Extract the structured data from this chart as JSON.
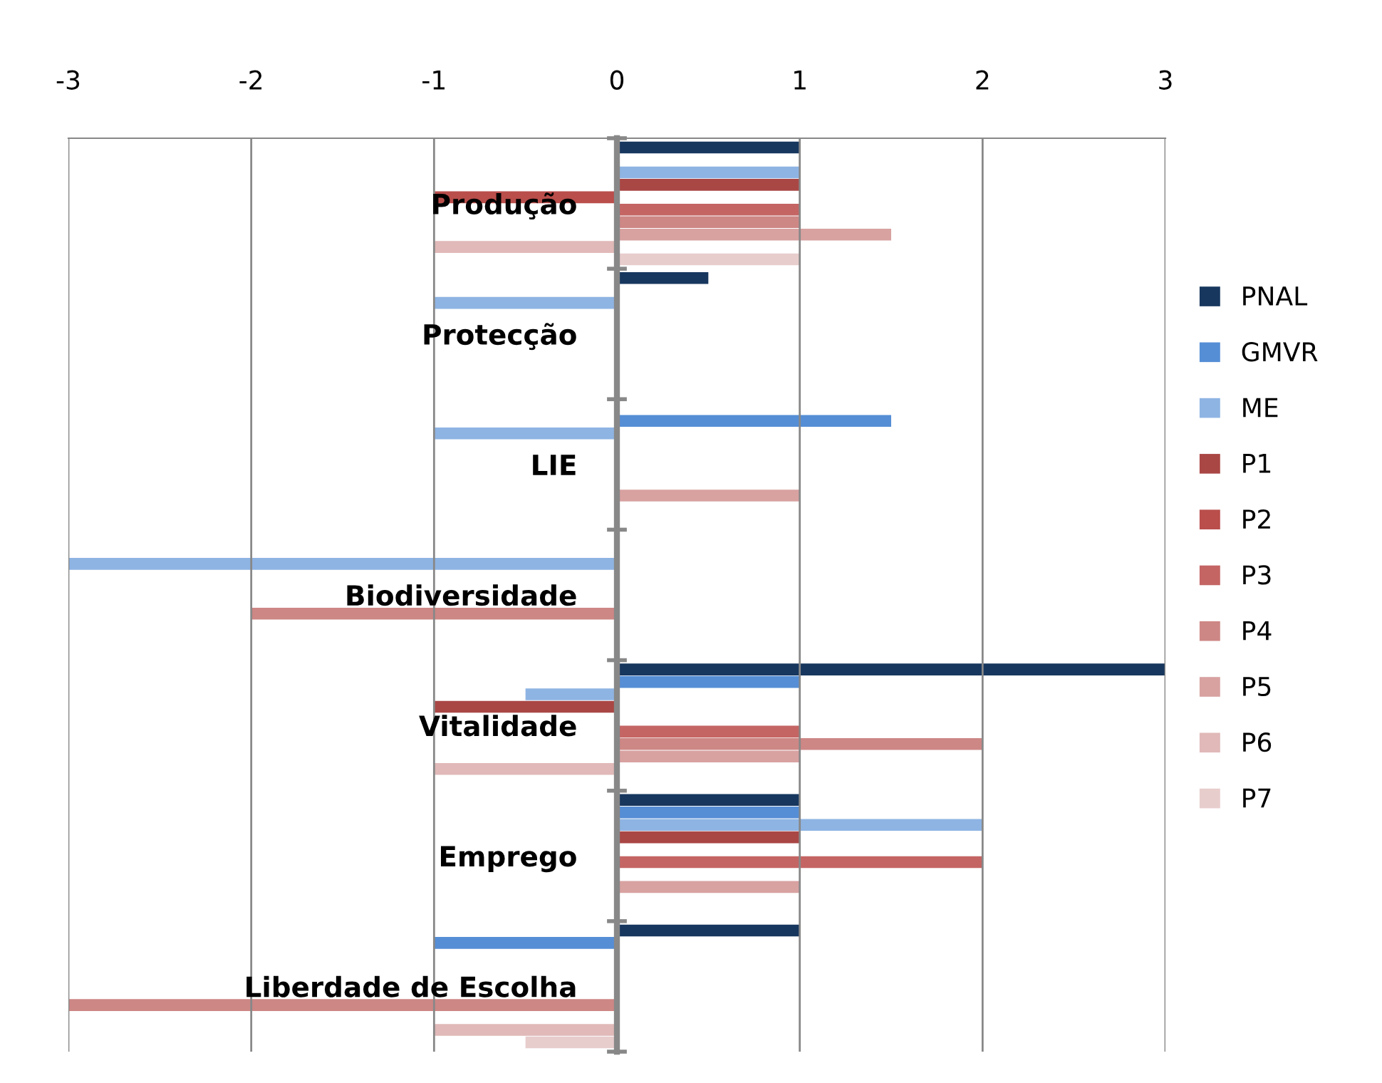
{
  "chart_data": {
    "type": "bar",
    "orientation": "horizontal",
    "categories": [
      "Produção",
      "Protecção",
      "LIE",
      "Biodiversidade",
      "Vitalidade",
      "Emprego",
      "Liberdade de Escolha"
    ],
    "series": [
      {
        "name": "PNAL",
        "color": "#17375e",
        "values": [
          1,
          0.5,
          null,
          null,
          3,
          1,
          1
        ]
      },
      {
        "name": "GMVR",
        "color": "#558ed5",
        "values": [
          null,
          null,
          1.5,
          null,
          1,
          1,
          -1
        ]
      },
      {
        "name": "ME",
        "color": "#8eb4e3",
        "values": [
          1,
          -1,
          -1,
          -3,
          -0.5,
          2,
          null
        ]
      },
      {
        "name": "P1",
        "color": "#a94745",
        "values": [
          1,
          null,
          null,
          null,
          -1,
          1,
          null
        ]
      },
      {
        "name": "P2",
        "color": "#b94e4b",
        "values": [
          -1,
          null,
          null,
          null,
          null,
          null,
          null
        ]
      },
      {
        "name": "P3",
        "color": "#c46564",
        "values": [
          1,
          null,
          null,
          null,
          1,
          2,
          null
        ]
      },
      {
        "name": "P4",
        "color": "#cd8785",
        "values": [
          1,
          null,
          null,
          -2,
          2,
          null,
          -3
        ]
      },
      {
        "name": "P5",
        "color": "#d8a2a1",
        "values": [
          1.5,
          null,
          1,
          null,
          1,
          1,
          null
        ]
      },
      {
        "name": "P6",
        "color": "#e0b9b8",
        "values": [
          -1,
          null,
          null,
          null,
          -1,
          null,
          -1
        ]
      },
      {
        "name": "P7",
        "color": "#e8cdcd",
        "values": [
          1,
          null,
          null,
          null,
          null,
          null,
          -0.5
        ]
      }
    ],
    "xlim": [
      -3,
      3
    ],
    "xticks": [
      -3,
      -2,
      -1,
      0,
      1,
      2,
      3
    ],
    "grid": "x",
    "legend": "right"
  }
}
